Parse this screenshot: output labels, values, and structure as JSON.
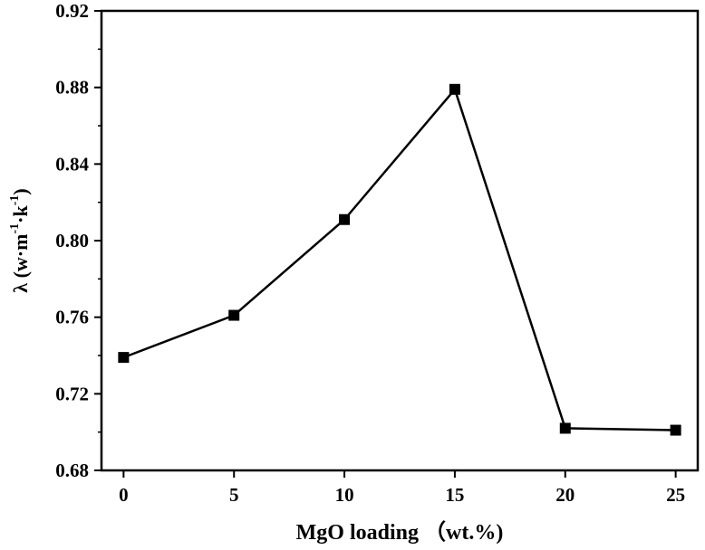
{
  "chart_data": {
    "type": "line",
    "xlabel": "MgO loading （wt.%)",
    "ylabel": {
      "main_parts": [
        "λ (w·m",
        "·k",
        ")"
      ],
      "superscripts": [
        "-1",
        "-1"
      ]
    },
    "x": [
      0,
      5,
      10,
      15,
      20,
      25
    ],
    "values": [
      0.739,
      0.761,
      0.811,
      0.879,
      0.702,
      0.701
    ],
    "xlim": [
      -1,
      26
    ],
    "ylim": [
      0.68,
      0.92
    ],
    "xticks": [
      "0",
      "5",
      "10",
      "15",
      "20",
      "25"
    ],
    "xtick_values": [
      0,
      5,
      10,
      15,
      20,
      25
    ],
    "yticks": [
      "0.68",
      "0.72",
      "0.76",
      "0.80",
      "0.84",
      "0.88",
      "0.92"
    ],
    "ytick_values": [
      0.68,
      0.72,
      0.76,
      0.8,
      0.84,
      0.88,
      0.92
    ],
    "marker": "square",
    "line_color": "#000000",
    "grid": false,
    "legend": "none"
  }
}
